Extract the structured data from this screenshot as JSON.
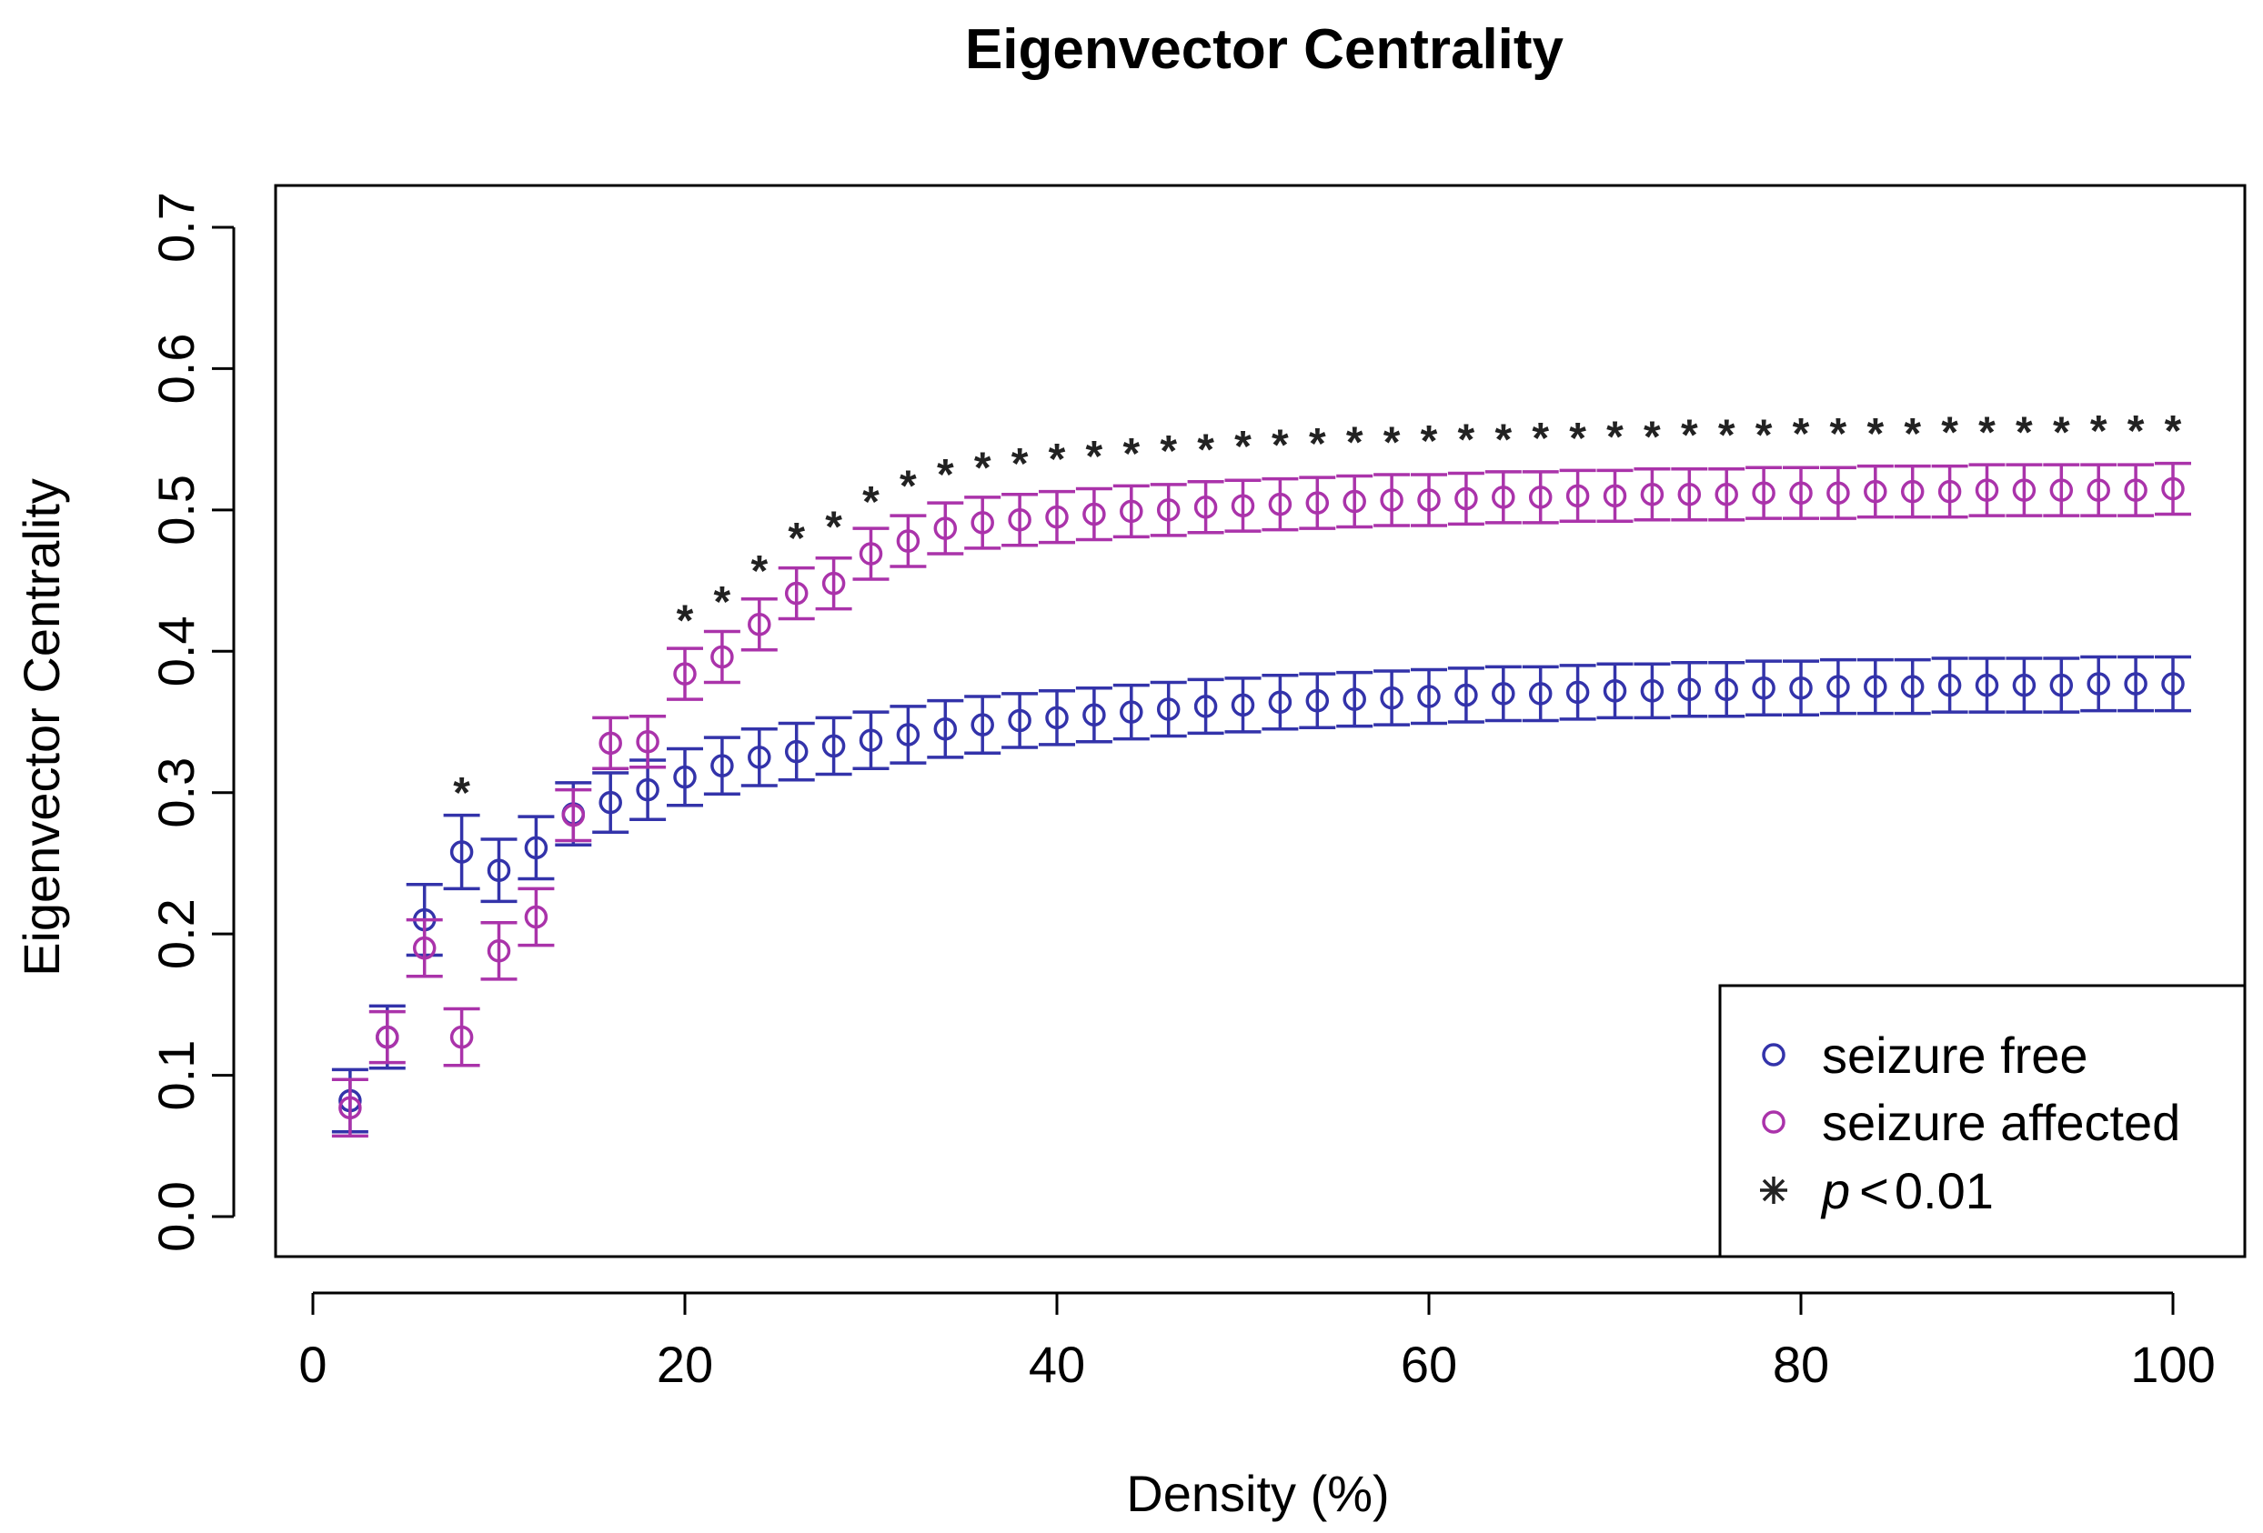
{
  "chart_data": {
    "type": "scatter",
    "title": "Eigenvector Centrality",
    "xlabel": "Density (%)",
    "ylabel": "Eigenvector Centrality",
    "xlim": [
      0,
      100
    ],
    "ylim": [
      0,
      0.7
    ],
    "x_ticks": [
      "0",
      "20",
      "40",
      "60",
      "80",
      "100"
    ],
    "y_ticks": [
      "0.0",
      "0.1",
      "0.2",
      "0.3",
      "0.4",
      "0.5",
      "0.6",
      "0.7"
    ],
    "grid": false,
    "legend_position": "bottom-right",
    "x": [
      2,
      4,
      6,
      8,
      10,
      12,
      14,
      16,
      18,
      20,
      22,
      24,
      26,
      28,
      30,
      32,
      34,
      36,
      38,
      40,
      42,
      44,
      46,
      48,
      50,
      52,
      54,
      56,
      58,
      60,
      62,
      64,
      66,
      68,
      70,
      72,
      74,
      76,
      78,
      80,
      82,
      84,
      86,
      88,
      90,
      92,
      94,
      96,
      98,
      100
    ],
    "series": [
      {
        "name": "seizure free",
        "color": "#3333aa",
        "marker": "circle",
        "values": [
          0.082,
          0.127,
          0.21,
          0.258,
          0.245,
          0.261,
          0.285,
          0.293,
          0.302,
          0.311,
          0.319,
          0.325,
          0.329,
          0.333,
          0.337,
          0.341,
          0.345,
          0.348,
          0.351,
          0.353,
          0.355,
          0.357,
          0.359,
          0.361,
          0.362,
          0.364,
          0.365,
          0.366,
          0.367,
          0.368,
          0.369,
          0.37,
          0.37,
          0.371,
          0.372,
          0.372,
          0.373,
          0.373,
          0.374,
          0.374,
          0.375,
          0.375,
          0.375,
          0.376,
          0.376,
          0.376,
          0.376,
          0.377,
          0.377,
          0.377
        ],
        "error": [
          0.022,
          0.022,
          0.025,
          0.026,
          0.022,
          0.022,
          0.022,
          0.021,
          0.021,
          0.02,
          0.02,
          0.02,
          0.02,
          0.02,
          0.02,
          0.02,
          0.02,
          0.02,
          0.019,
          0.019,
          0.019,
          0.019,
          0.019,
          0.019,
          0.019,
          0.019,
          0.019,
          0.019,
          0.019,
          0.019,
          0.019,
          0.019,
          0.019,
          0.019,
          0.019,
          0.019,
          0.019,
          0.019,
          0.019,
          0.019,
          0.019,
          0.019,
          0.019,
          0.019,
          0.019,
          0.019,
          0.019,
          0.019,
          0.019,
          0.019
        ]
      },
      {
        "name": "seizure affected",
        "color": "#aa33aa",
        "marker": "circle",
        "values": [
          0.077,
          0.127,
          0.19,
          0.127,
          0.188,
          0.212,
          0.284,
          0.335,
          0.336,
          0.384,
          0.396,
          0.419,
          0.441,
          0.448,
          0.469,
          0.478,
          0.487,
          0.491,
          0.493,
          0.495,
          0.497,
          0.499,
          0.5,
          0.502,
          0.503,
          0.504,
          0.505,
          0.506,
          0.507,
          0.507,
          0.508,
          0.509,
          0.509,
          0.51,
          0.51,
          0.511,
          0.511,
          0.511,
          0.512,
          0.512,
          0.512,
          0.513,
          0.513,
          0.513,
          0.514,
          0.514,
          0.514,
          0.514,
          0.514,
          0.515
        ],
        "error": [
          0.02,
          0.018,
          0.02,
          0.02,
          0.02,
          0.02,
          0.018,
          0.018,
          0.018,
          0.018,
          0.018,
          0.018,
          0.018,
          0.018,
          0.018,
          0.018,
          0.018,
          0.018,
          0.018,
          0.018,
          0.018,
          0.018,
          0.018,
          0.018,
          0.018,
          0.018,
          0.018,
          0.018,
          0.018,
          0.018,
          0.018,
          0.018,
          0.018,
          0.018,
          0.018,
          0.018,
          0.018,
          0.018,
          0.018,
          0.018,
          0.018,
          0.018,
          0.018,
          0.018,
          0.018,
          0.018,
          0.018,
          0.018,
          0.018,
          0.018
        ]
      }
    ],
    "significance": {
      "name": "p < 0.01",
      "symbol": "*",
      "label_prefix": "p",
      "label_operator": "<",
      "label_value": "0.01",
      "color": "#222222",
      "x": [
        8,
        20,
        22,
        24,
        26,
        28,
        30,
        32,
        34,
        36,
        38,
        40,
        42,
        44,
        46,
        48,
        50,
        52,
        54,
        56,
        58,
        60,
        62,
        64,
        66,
        68,
        70,
        72,
        74,
        76,
        78,
        80,
        82,
        84,
        86,
        88,
        90,
        92,
        94,
        96,
        98,
        100
      ],
      "y": [
        0.305,
        0.427,
        0.44,
        0.462,
        0.485,
        0.493,
        0.511,
        0.522,
        0.53,
        0.535,
        0.538,
        0.541,
        0.543,
        0.545,
        0.547,
        0.548,
        0.55,
        0.551,
        0.552,
        0.553,
        0.553,
        0.554,
        0.555,
        0.555,
        0.556,
        0.556,
        0.557,
        0.557,
        0.558,
        0.558,
        0.558,
        0.559,
        0.559,
        0.559,
        0.559,
        0.56,
        0.56,
        0.56,
        0.56,
        0.561,
        0.561,
        0.561
      ]
    }
  }
}
